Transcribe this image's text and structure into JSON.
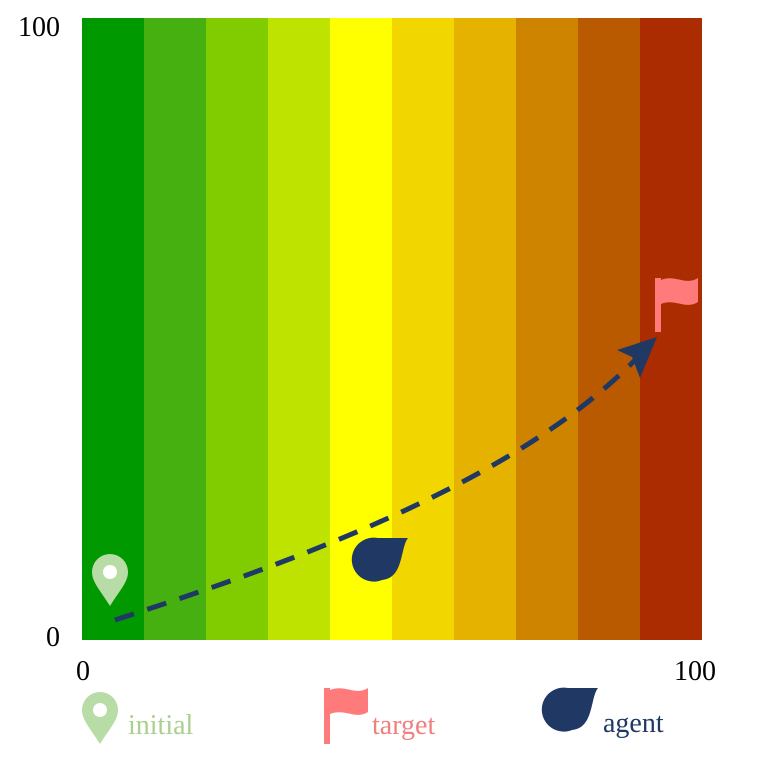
{
  "axes": {
    "y_top": "100",
    "y_bottom": "0",
    "x_left": "0",
    "x_right": "100"
  },
  "legend": [
    {
      "label": "initial"
    },
    {
      "label": "target"
    },
    {
      "label": "agent"
    }
  ]
}
